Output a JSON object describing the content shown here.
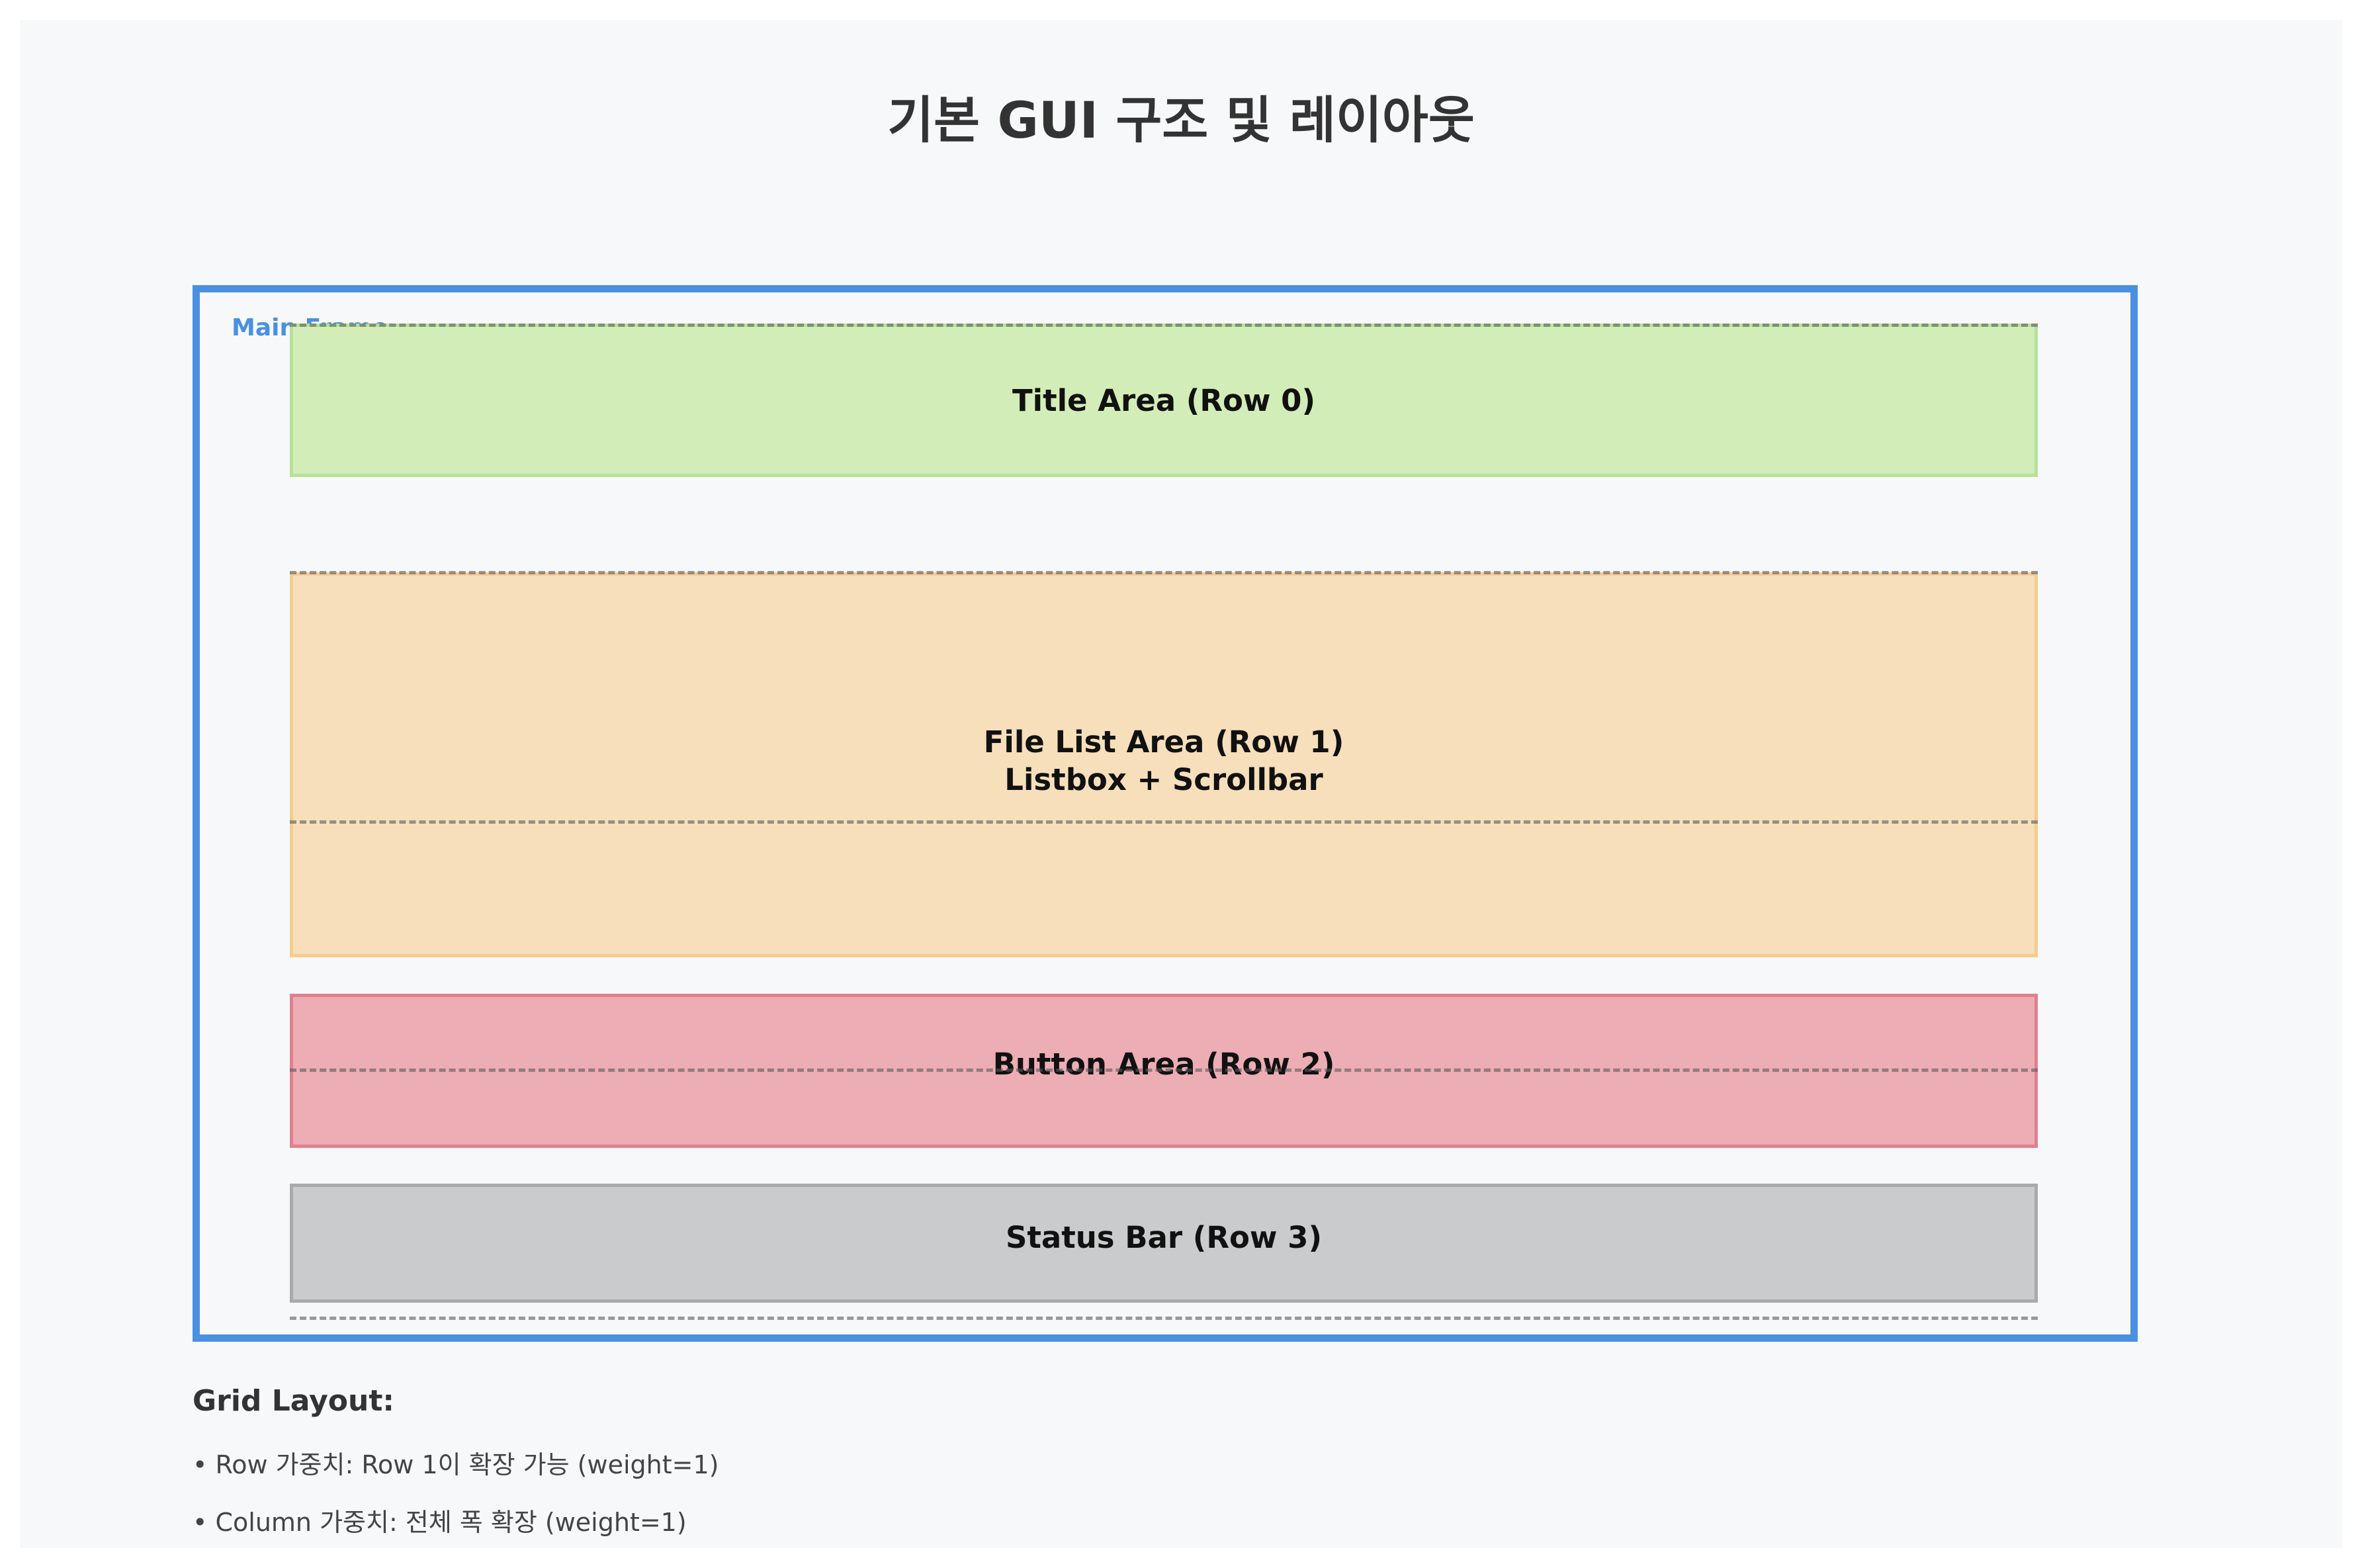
{
  "title": "기본 GUI 구조 및 레이아웃",
  "main_frame": {
    "label": "Main Frame",
    "border_color": "#4a90e2"
  },
  "areas": [
    {
      "label": "Title Area (Row 0)",
      "fill": "#d3edb8",
      "border": "#b7e09a"
    },
    {
      "label": "File List Area (Row 1)",
      "sublabel": "Listbox + Scrollbar",
      "fill": "#f6dfba",
      "border": "#f3cc8f"
    },
    {
      "label": "Button Area (Row 2)",
      "fill": "#ecadb5",
      "border": "#e0808e"
    },
    {
      "label": "Status Bar (Row 3)",
      "fill": "#cacbcd",
      "border": "#a9aaac"
    }
  ],
  "notes": {
    "heading": "Grid Layout:",
    "items": [
      "• Row 가중치: Row 1이 확장 가능 (weight=1)",
      "• Column 가중치: 전체 폭 확장 (weight=1)"
    ]
  }
}
